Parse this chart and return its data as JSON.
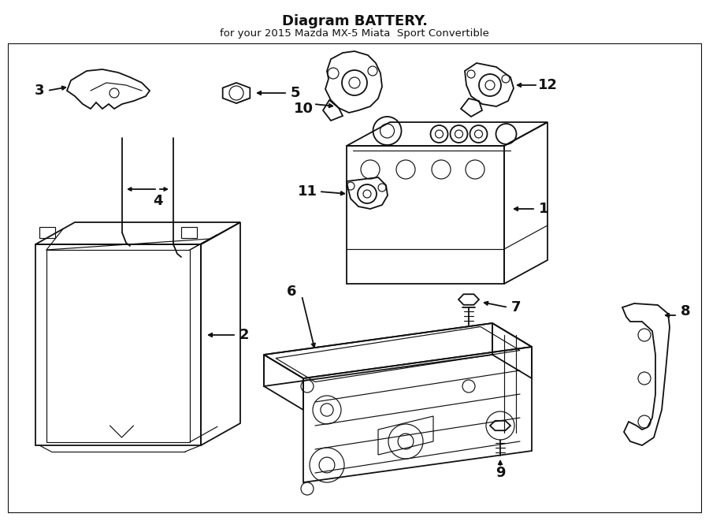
{
  "title": "Diagram BATTERY.",
  "subtitle": "for your 2015 Mazda MX-5 Miata  Sport Convertible",
  "bg": "#ffffff",
  "lc": "#111111",
  "figsize": [
    9.0,
    6.61
  ],
  "dpi": 100
}
